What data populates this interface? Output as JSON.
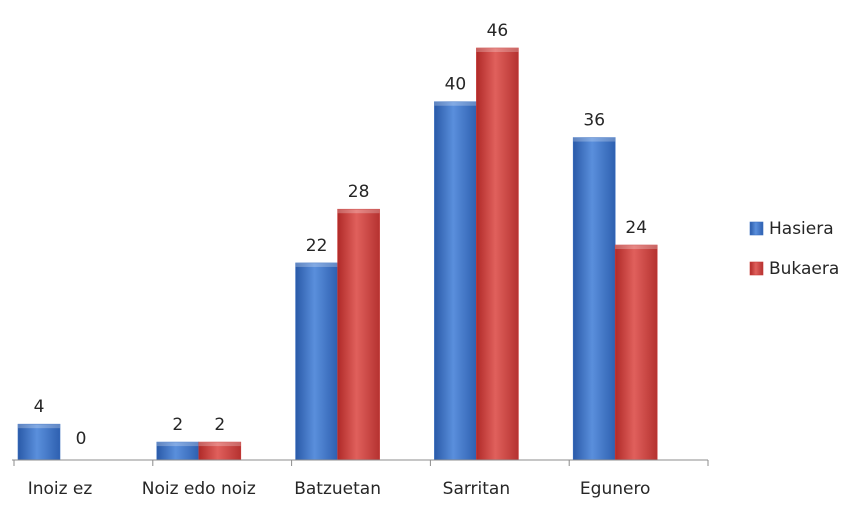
{
  "chart_data": {
    "type": "bar",
    "categories": [
      "Inoiz ez",
      "Noiz edo noiz",
      "Batzuetan",
      "Sarritan",
      "Egunero"
    ],
    "series": [
      {
        "name": "Hasiera",
        "values": [
          4,
          2,
          22,
          40,
          36
        ],
        "color": "#3a6fc0"
      },
      {
        "name": "Bukaera",
        "values": [
          0,
          2,
          28,
          46,
          24
        ],
        "color": "#c83a38"
      }
    ],
    "title": "",
    "xlabel": "",
    "ylabel": "",
    "ylim": [
      0,
      46
    ],
    "grid": false,
    "legend_position": "right",
    "data_labels": true
  }
}
